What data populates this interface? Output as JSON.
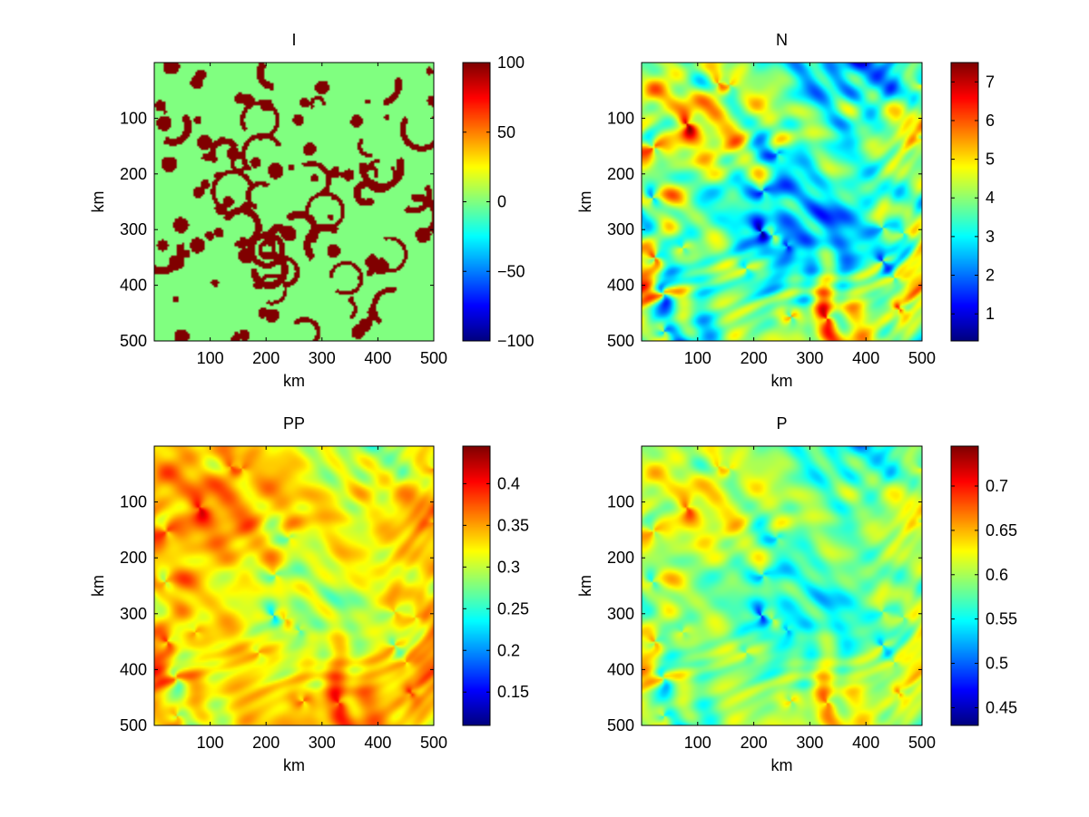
{
  "figure": {
    "background": "#ffffff",
    "colormap": "jet"
  },
  "chart_data": [
    {
      "type": "heatmap",
      "title": "I",
      "xlabel": "km",
      "ylabel": "km",
      "xlim": [
        0,
        500
      ],
      "ylim": [
        500,
        0
      ],
      "xticks": [
        100,
        200,
        300,
        400,
        500
      ],
      "yticks": [
        100,
        200,
        300,
        400,
        500
      ],
      "colorbar": {
        "range": [
          -100,
          100
        ],
        "ticks": [
          -100,
          -50,
          0,
          50,
          100
        ],
        "tick_labels": [
          "−100",
          "−50",
          "0",
          "50",
          "100"
        ]
      },
      "field": {
        "description_kind": "binary",
        "background_value": 0,
        "feature_value": 100,
        "dominant_colors": [
          "#80ff80",
          "#800000"
        ],
        "seed": 11
      }
    },
    {
      "type": "heatmap",
      "title": "N",
      "xlabel": "km",
      "ylabel": "km",
      "xlim": [
        0,
        500
      ],
      "ylim": [
        500,
        0
      ],
      "xticks": [
        100,
        200,
        300,
        400,
        500
      ],
      "yticks": [
        100,
        200,
        300,
        400,
        500
      ],
      "colorbar": {
        "range": [
          0.3,
          7.5
        ],
        "ticks": [
          1,
          2,
          3,
          4,
          5,
          6,
          7
        ],
        "tick_labels": [
          "1",
          "2",
          "3",
          "4",
          "5",
          "6",
          "7"
        ]
      },
      "field": {
        "description_kind": "turbulent",
        "bias": 0.0,
        "contrast": 1.0,
        "seed": 23
      }
    },
    {
      "type": "heatmap",
      "title": "PP",
      "xlabel": "km",
      "ylabel": "km",
      "xlim": [
        0,
        500
      ],
      "ylim": [
        500,
        0
      ],
      "xticks": [
        100,
        200,
        300,
        400,
        500
      ],
      "yticks": [
        100,
        200,
        300,
        400,
        500
      ],
      "colorbar": {
        "range": [
          0.11,
          0.445
        ],
        "ticks": [
          0.15,
          0.2,
          0.25,
          0.3,
          0.35,
          0.4
        ],
        "tick_labels": [
          "0.15",
          "0.2",
          "0.25",
          "0.3",
          "0.35",
          "0.4"
        ]
      },
      "field": {
        "description_kind": "turbulent",
        "bias": 0.32,
        "contrast": 0.75,
        "seed": 23
      }
    },
    {
      "type": "heatmap",
      "title": "P",
      "xlabel": "km",
      "ylabel": "km",
      "xlim": [
        0,
        500
      ],
      "ylim": [
        500,
        0
      ],
      "xticks": [
        100,
        200,
        300,
        400,
        500
      ],
      "yticks": [
        100,
        200,
        300,
        400,
        500
      ],
      "colorbar": {
        "range": [
          0.43,
          0.745
        ],
        "ticks": [
          0.45,
          0.5,
          0.55,
          0.6,
          0.65,
          0.7
        ],
        "tick_labels": [
          "0.45",
          "0.5",
          "0.55",
          "0.6",
          "0.65",
          "0.7"
        ]
      },
      "field": {
        "description_kind": "turbulent",
        "bias": 0.14,
        "contrast": 0.55,
        "seed": 23
      }
    }
  ]
}
